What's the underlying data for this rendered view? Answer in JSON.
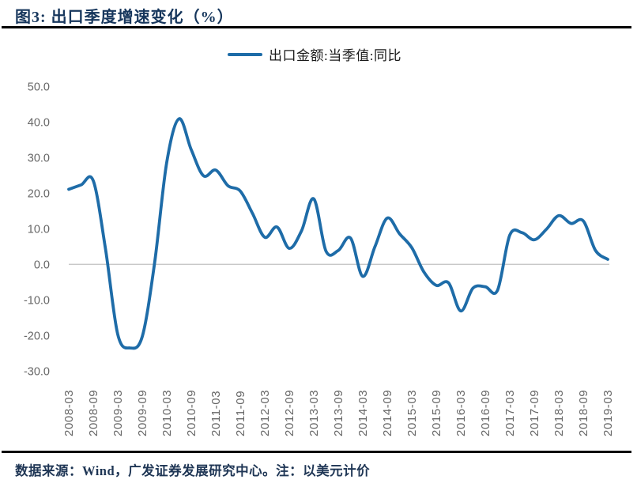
{
  "figure": {
    "title": "图3:  出口季度增速变化（%）",
    "source_note": "数据来源：Wind，广发证券发展研究中心。注：以美元计价"
  },
  "legend": {
    "label": "出口金额:当季值:同比"
  },
  "colors": {
    "line": "#1E6CA8",
    "title_text": "#16365C",
    "note_text": "#1F3655",
    "axis_text": "#666666",
    "zero_line": "#C8C8C8",
    "rule": "#000000"
  },
  "chart_data": {
    "type": "line",
    "title": "出口季度增速变化（%）",
    "xlabel": "",
    "ylabel": "",
    "ylim": [
      -30,
      50
    ],
    "y_tick_step": 10,
    "grid": "zero-line-only",
    "legend_position": "top-center",
    "y_tick_labels": [
      "50.0",
      "40.0",
      "30.0",
      "20.0",
      "10.0",
      "0.0",
      "-10.0",
      "-20.0",
      "-30.0"
    ],
    "x_tick_labels": [
      "2008-03",
      "2008-09",
      "2009-03",
      "2009-09",
      "2010-03",
      "2010-09",
      "2011-03",
      "2011-09",
      "2012-03",
      "2012-09",
      "2013-03",
      "2013-09",
      "2014-03",
      "2014-09",
      "2015-03",
      "2015-09",
      "2016-03",
      "2016-09",
      "2017-03",
      "2017-09",
      "2018-03",
      "2018-09",
      "2019-03"
    ],
    "x": [
      "2008-03",
      "2008-06",
      "2008-09",
      "2008-12",
      "2009-03",
      "2009-06",
      "2009-09",
      "2009-12",
      "2010-03",
      "2010-06",
      "2010-09",
      "2010-12",
      "2011-03",
      "2011-06",
      "2011-09",
      "2011-12",
      "2012-03",
      "2012-06",
      "2012-09",
      "2012-12",
      "2013-03",
      "2013-06",
      "2013-09",
      "2013-12",
      "2014-03",
      "2014-06",
      "2014-09",
      "2014-12",
      "2015-03",
      "2015-06",
      "2015-09",
      "2015-12",
      "2016-03",
      "2016-06",
      "2016-09",
      "2016-12",
      "2017-03",
      "2017-06",
      "2017-09",
      "2017-12",
      "2018-03",
      "2018-06",
      "2018-09",
      "2018-12",
      "2019-03"
    ],
    "series": [
      {
        "name": "出口金额:当季值:同比",
        "values": [
          21.1,
          22.3,
          23.5,
          4.3,
          -19.7,
          -23.5,
          -20.3,
          0.2,
          28.7,
          40.9,
          32.2,
          24.9,
          26.5,
          22.1,
          20.6,
          14.3,
          7.6,
          10.5,
          4.5,
          9.4,
          18.4,
          3.7,
          3.9,
          7.4,
          -3.4,
          5.0,
          13.0,
          8.6,
          4.7,
          -2.2,
          -5.9,
          -5.2,
          -13.1,
          -6.7,
          -6.3,
          -7.3,
          8.2,
          8.9,
          6.9,
          9.9,
          13.7,
          11.5,
          12.2,
          3.9,
          1.4
        ]
      }
    ]
  }
}
